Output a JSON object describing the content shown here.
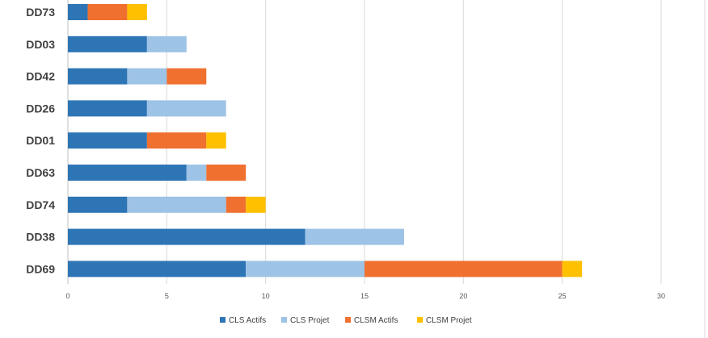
{
  "chart_data": {
    "type": "bar",
    "orientation": "horizontal",
    "stacked": true,
    "categories": [
      "DD73",
      "DD03",
      "DD42",
      "DD26",
      "DD01",
      "DD63",
      "DD74",
      "DD38",
      "DD69"
    ],
    "series": [
      {
        "name": "CLS Actifs",
        "color": "#2e75b6",
        "values": [
          1,
          4,
          3,
          4,
          4,
          6,
          3,
          12,
          9
        ]
      },
      {
        "name": "CLS Projet",
        "color": "#9dc3e6",
        "values": [
          0,
          2,
          2,
          4,
          0,
          1,
          5,
          5,
          6
        ]
      },
      {
        "name": "CLSM Actifs",
        "color": "#f07030",
        "values": [
          2,
          0,
          2,
          0,
          3,
          2,
          1,
          0,
          10
        ]
      },
      {
        "name": "CLSM Projet",
        "color": "#ffc000",
        "values": [
          1,
          0,
          0,
          0,
          1,
          0,
          1,
          0,
          1
        ]
      }
    ],
    "xlim": [
      0,
      30
    ],
    "xticks": [
      "0",
      "5",
      "10",
      "15",
      "20",
      "25",
      "30"
    ],
    "grid": true,
    "legend_position": "bottom",
    "title": "",
    "xlabel": "",
    "ylabel": ""
  }
}
